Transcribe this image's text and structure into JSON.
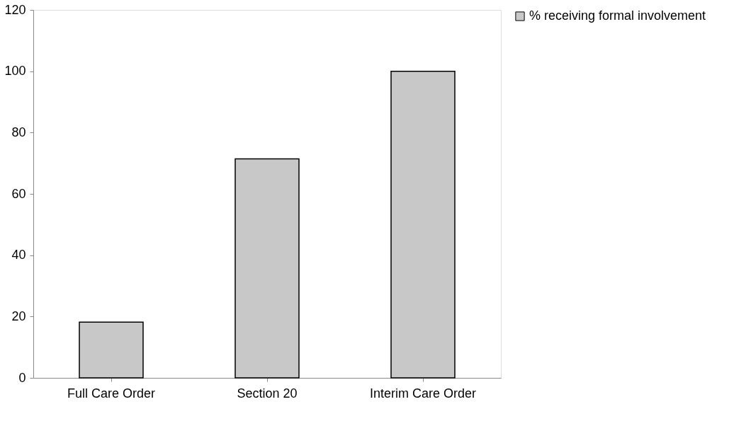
{
  "chart_data": {
    "type": "bar",
    "categories": [
      "Full Care Order",
      "Section 20",
      "Interim Care Order"
    ],
    "series": [
      {
        "name": "% receiving formal involvement",
        "color": "#c8c8c8",
        "values": [
          18.2,
          71.4,
          100
        ]
      }
    ],
    "ylim": [
      0,
      120
    ],
    "yticks": [
      0,
      20,
      40,
      60,
      80,
      100,
      120
    ],
    "grid": false,
    "legend": "right"
  }
}
